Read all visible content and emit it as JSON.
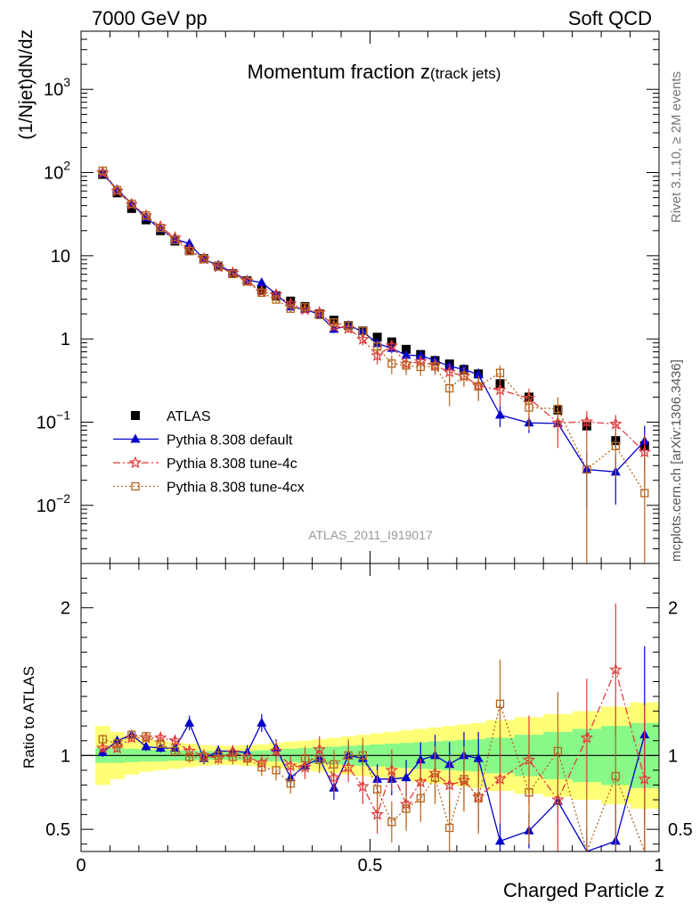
{
  "header": {
    "left": "7000 GeV pp",
    "right": "Soft QCD"
  },
  "side_text": {
    "rivet": "Rivet 3.1.10, ≥ 2M events",
    "mcplots": "mcplots.cern.ch [arXiv:1306.3436]"
  },
  "chart_data": {
    "type": "scatter",
    "title": "Momentum fraction z",
    "title_sub": "(track jets)",
    "watermark": "ATLAS_2011_I919017",
    "xlabel": "Charged Particle z",
    "ylabel": "(1/Njet)dN/dz",
    "ratio_ylabel": "Ratio to ATLAS",
    "xlim": [
      0,
      1
    ],
    "ylim": [
      0.002,
      5000
    ],
    "yscale": "log",
    "ratio_ylim": [
      0.35,
      2.3
    ],
    "x_ticks": [
      "0",
      "0.5",
      "1"
    ],
    "y_ticks": [
      {
        "value": 0.01,
        "base": "10",
        "exp": "−2"
      },
      {
        "value": 0.1,
        "base": "10",
        "exp": "−1"
      },
      {
        "value": 1,
        "base": "1",
        "exp": ""
      },
      {
        "value": 10,
        "base": "10",
        "exp": ""
      },
      {
        "value": 100,
        "base": "10",
        "exp": "2"
      },
      {
        "value": 1000,
        "base": "10",
        "exp": "3"
      }
    ],
    "ratio_ticks": [
      "0.5",
      "1",
      "2"
    ],
    "legend_position": "lower-left",
    "x": [
      0.0375,
      0.0625,
      0.0875,
      0.1125,
      0.1375,
      0.1625,
      0.1875,
      0.2125,
      0.2375,
      0.2625,
      0.2875,
      0.3125,
      0.3375,
      0.3625,
      0.3875,
      0.4125,
      0.4375,
      0.4625,
      0.4875,
      0.5125,
      0.5375,
      0.5625,
      0.5875,
      0.6125,
      0.6375,
      0.6625,
      0.6875,
      0.725,
      0.775,
      0.825,
      0.875,
      0.925,
      0.975
    ],
    "band_edges": [
      0.025,
      0.05,
      0.075,
      0.1,
      0.125,
      0.15,
      0.175,
      0.2,
      0.225,
      0.25,
      0.275,
      0.3,
      0.325,
      0.35,
      0.375,
      0.4,
      0.425,
      0.45,
      0.475,
      0.5,
      0.525,
      0.55,
      0.575,
      0.6,
      0.625,
      0.65,
      0.675,
      0.7,
      0.75,
      0.8,
      0.85,
      0.9,
      0.95,
      1.0
    ],
    "band_green": [
      0.05,
      0.05,
      0.045,
      0.04,
      0.04,
      0.035,
      0.035,
      0.03,
      0.03,
      0.03,
      0.03,
      0.035,
      0.04,
      0.045,
      0.05,
      0.055,
      0.06,
      0.065,
      0.07,
      0.075,
      0.08,
      0.085,
      0.09,
      0.095,
      0.1,
      0.105,
      0.11,
      0.12,
      0.14,
      0.16,
      0.18,
      0.2,
      0.22
    ],
    "band_yellow": [
      0.2,
      0.16,
      0.13,
      0.11,
      0.1,
      0.09,
      0.08,
      0.07,
      0.065,
      0.065,
      0.07,
      0.075,
      0.085,
      0.095,
      0.1,
      0.11,
      0.12,
      0.13,
      0.14,
      0.15,
      0.16,
      0.17,
      0.18,
      0.19,
      0.2,
      0.21,
      0.22,
      0.24,
      0.26,
      0.28,
      0.3,
      0.33,
      0.36
    ],
    "series": [
      {
        "name": "ATLAS",
        "color": "#000000",
        "marker": "square-filled",
        "values": [
          95,
          57,
          37,
          27,
          20,
          15,
          11.5,
          9.2,
          7.5,
          6.1,
          5.0,
          3.9,
          3.3,
          2.85,
          2.45,
          2.0,
          1.68,
          1.45,
          1.25,
          1.05,
          0.92,
          0.75,
          0.65,
          0.55,
          0.5,
          0.43,
          0.38,
          0.29,
          0.2,
          0.14,
          0.09,
          0.06,
          0.052
        ],
        "errors": [
          3,
          2,
          1.2,
          0.8,
          0.6,
          0.4,
          0.3,
          0.25,
          0.2,
          0.15,
          0.12,
          0.1,
          0.08,
          0.07,
          0.06,
          0.05,
          0.04,
          0.04,
          0.03,
          0.03,
          0.03,
          0.02,
          0.02,
          0.02,
          0.02,
          0.02,
          0.02,
          0.015,
          0.012,
          0.01,
          0.008,
          0.006,
          0.006
        ]
      },
      {
        "name": "Pythia 8.308 default",
        "color": "#0000cc",
        "marker": "triangle-filled",
        "line": "solid",
        "ratio": [
          1.02,
          1.1,
          1.14,
          1.06,
          1.05,
          1.05,
          1.22,
          0.98,
          1.03,
          1.03,
          1.02,
          1.22,
          1.05,
          0.85,
          0.93,
          0.98,
          0.78,
          1.0,
          0.98,
          0.84,
          0.84,
          0.85,
          0.97,
          1.0,
          0.94,
          1.0,
          0.98,
          0.42,
          0.49,
          0.69,
          0.3,
          0.42,
          1.14
        ],
        "ratio_err": [
          0.03,
          0.03,
          0.03,
          0.03,
          0.03,
          0.03,
          0.05,
          0.04,
          0.04,
          0.04,
          0.05,
          0.06,
          0.06,
          0.06,
          0.07,
          0.07,
          0.08,
          0.09,
          0.09,
          0.1,
          0.11,
          0.12,
          0.12,
          0.14,
          0.15,
          0.16,
          0.18,
          0.12,
          0.12,
          0.15,
          0.2,
          0.25,
          0.6
        ]
      },
      {
        "name": "Pythia 8.308 tune-4c",
        "color": "#e23a3a",
        "marker": "star-open",
        "line": "dashdot",
        "ratio": [
          1.05,
          1.05,
          1.12,
          1.12,
          1.12,
          1.1,
          1.03,
          1.0,
          0.98,
          1.02,
          0.99,
          0.95,
          1.03,
          0.93,
          0.92,
          1.04,
          0.85,
          0.92,
          0.79,
          0.6,
          0.9,
          0.67,
          0.82,
          0.88,
          0.8,
          0.83,
          0.72,
          0.84,
          0.97,
          0.7,
          1.12,
          1.58,
          0.84
        ],
        "ratio_err": [
          0.03,
          0.03,
          0.03,
          0.03,
          0.03,
          0.03,
          0.04,
          0.04,
          0.04,
          0.05,
          0.05,
          0.06,
          0.07,
          0.07,
          0.08,
          0.09,
          0.1,
          0.1,
          0.12,
          0.13,
          0.14,
          0.15,
          0.16,
          0.18,
          0.2,
          0.2,
          0.22,
          0.3,
          0.3,
          0.35,
          0.4,
          0.45,
          0.5
        ]
      },
      {
        "name": "Pythia 8.308 tune-4cx",
        "color": "#b5651d",
        "marker": "square-open",
        "line": "dotted",
        "ratio": [
          1.11,
          1.08,
          1.14,
          1.13,
          1.08,
          1.03,
          0.99,
          0.99,
          1.0,
          0.99,
          0.98,
          0.92,
          0.9,
          0.81,
          0.98,
          0.97,
          0.94,
          1.0,
          1.0,
          0.77,
          0.55,
          0.64,
          0.71,
          0.85,
          0.51,
          0.84,
          0.71,
          1.35,
          0.75,
          1.03,
          0.3,
          0.86,
          0.27
        ],
        "ratio_err": [
          0.03,
          0.03,
          0.03,
          0.03,
          0.03,
          0.04,
          0.04,
          0.04,
          0.05,
          0.05,
          0.05,
          0.06,
          0.07,
          0.07,
          0.08,
          0.09,
          0.1,
          0.11,
          0.12,
          0.13,
          0.14,
          0.15,
          0.16,
          0.18,
          0.2,
          0.22,
          0.24,
          0.3,
          0.35,
          0.4,
          0.45,
          0.5,
          0.5
        ]
      }
    ]
  }
}
